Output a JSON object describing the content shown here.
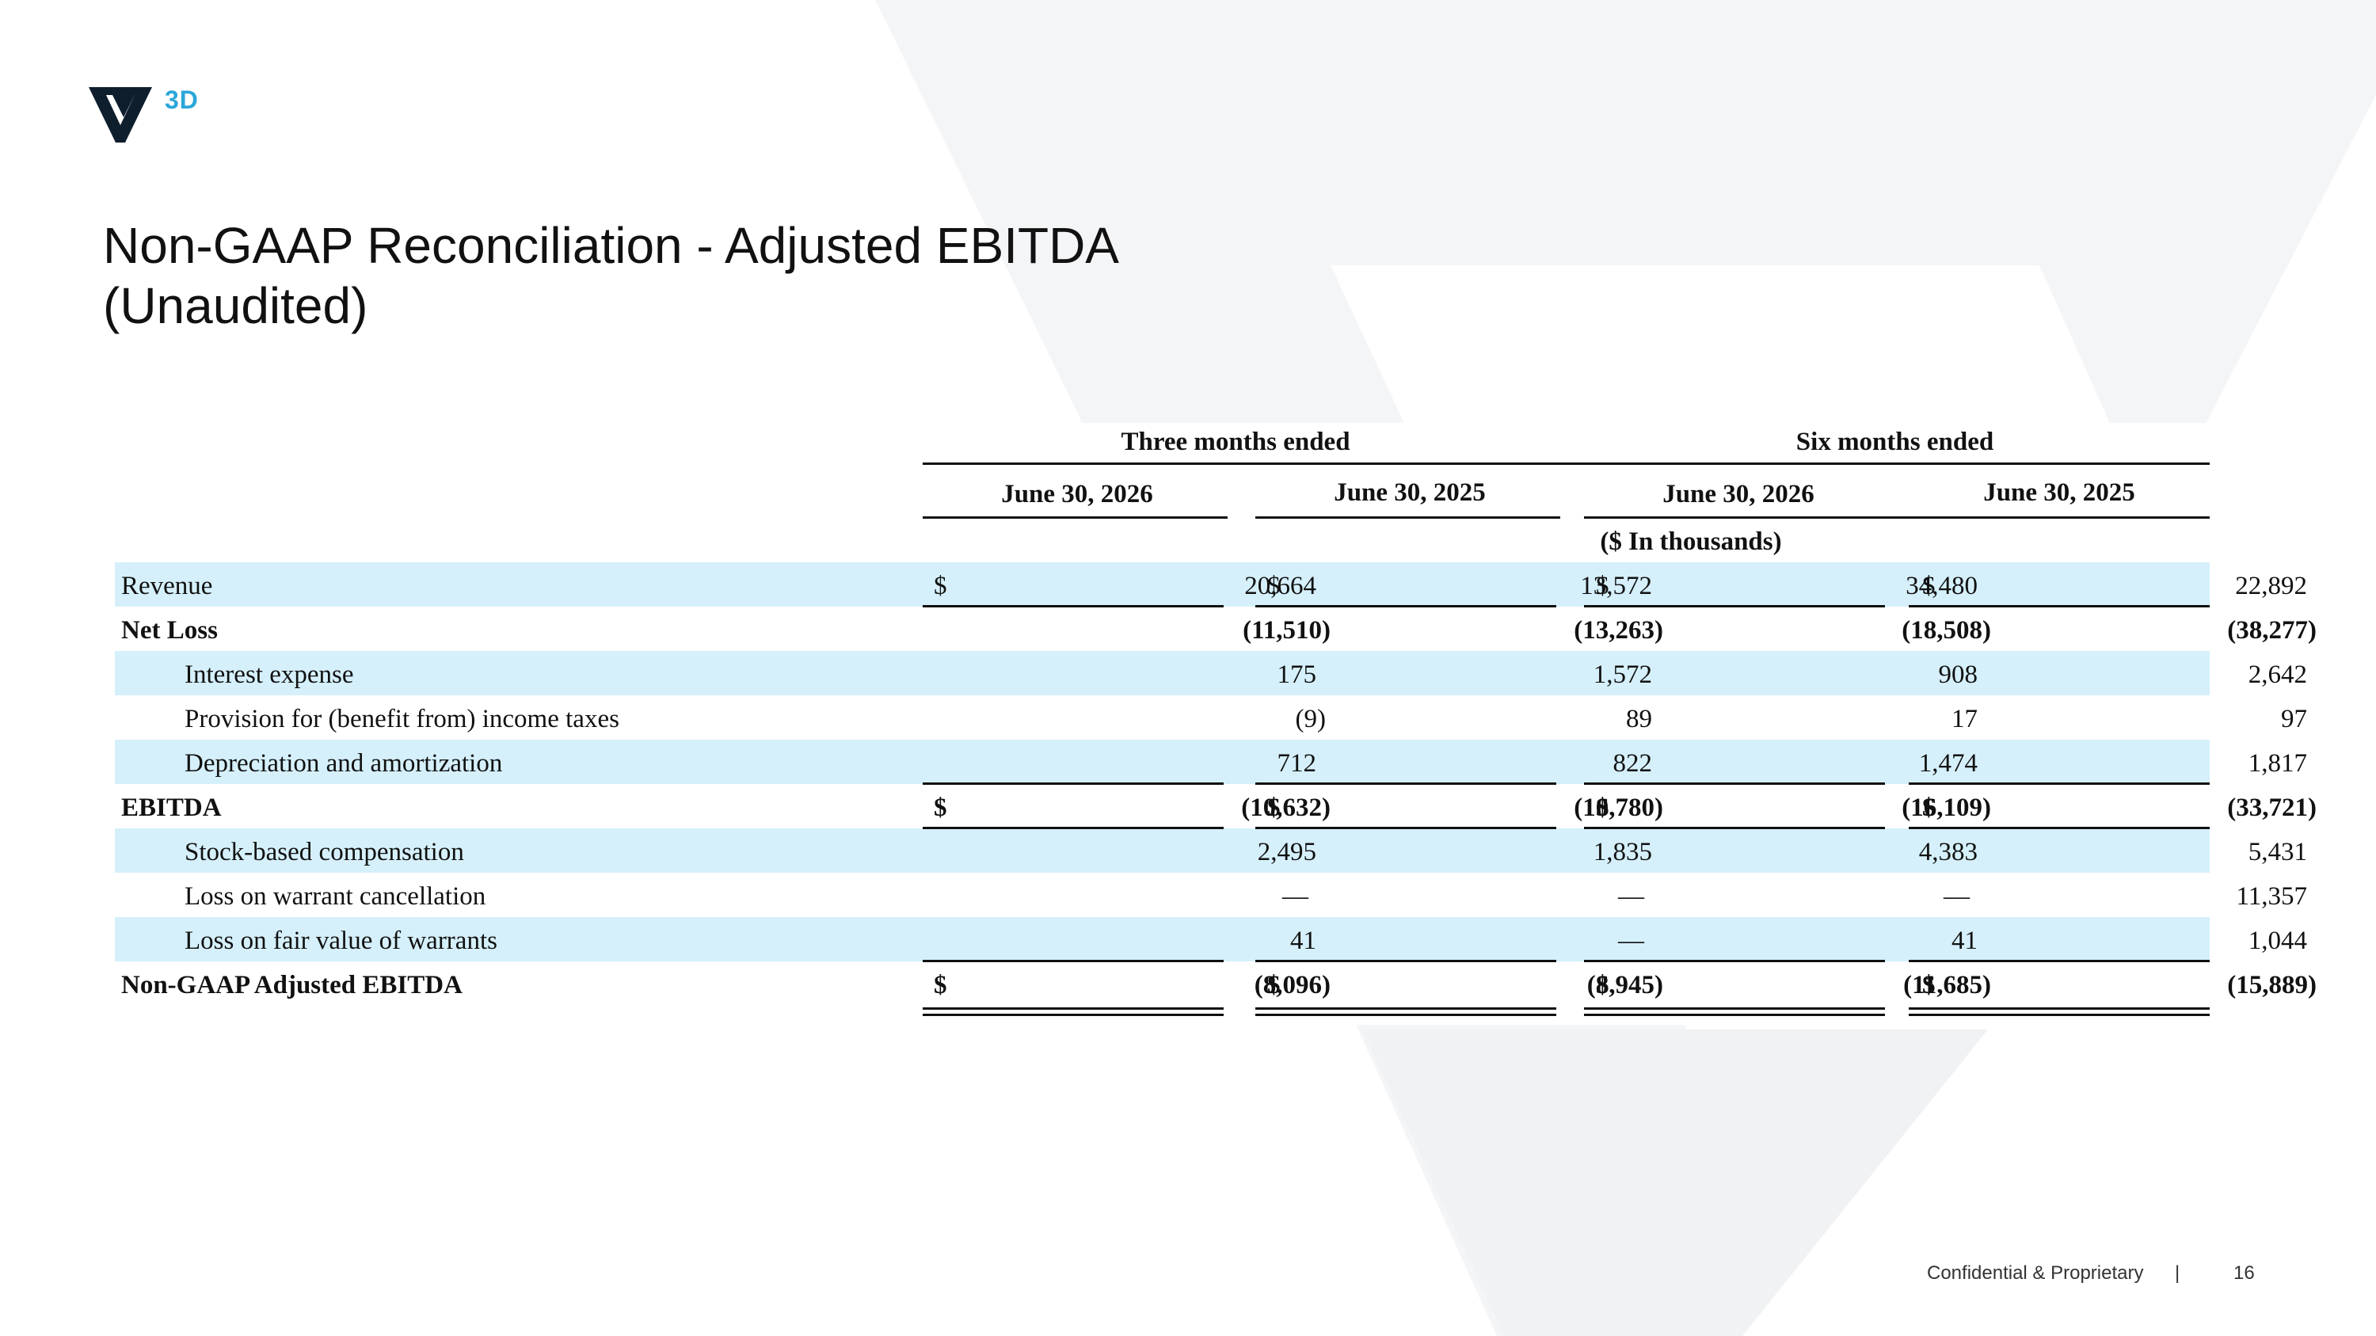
{
  "logo": {
    "text": "3D"
  },
  "title": {
    "line1": "Non-GAAP Reconciliation - Adjusted EBITDA",
    "line2": "(Unaudited)"
  },
  "table": {
    "group_headers": [
      "Three months ended",
      "Six months ended"
    ],
    "column_headers": [
      "June 30, 2026",
      "June 30, 2025",
      "June 30, 2026",
      "June 30, 2025"
    ],
    "units_note": "($ In thousands)",
    "currency_symbol": "$",
    "rows": [
      {
        "label": "Revenue",
        "values": [
          "20,664",
          "13,572",
          "34,480",
          "22,892"
        ]
      },
      {
        "label": "Net Loss",
        "values": [
          "(11,510)",
          "(13,263)",
          "(18,508)",
          "(38,277)"
        ]
      },
      {
        "label": "Interest expense",
        "values": [
          "175",
          "1,572",
          "908",
          "2,642"
        ]
      },
      {
        "label": "Provision for (benefit from) income taxes",
        "values": [
          "(9)",
          "89",
          "17",
          "97"
        ]
      },
      {
        "label": "Depreciation and amortization",
        "values": [
          "712",
          "822",
          "1,474",
          "1,817"
        ]
      },
      {
        "label": "EBITDA",
        "values": [
          "(10,632)",
          "(10,780)",
          "(16,109)",
          "(33,721)"
        ]
      },
      {
        "label": "Stock-based compensation",
        "values": [
          "2,495",
          "1,835",
          "4,383",
          "5,431"
        ]
      },
      {
        "label": "Loss on warrant cancellation",
        "values": [
          "—",
          "—",
          "—",
          "11,357"
        ]
      },
      {
        "label": "Loss on fair value of warrants",
        "values": [
          "41",
          "—",
          "41",
          "1,044"
        ]
      },
      {
        "label": "Non-GAAP Adjusted EBITDA",
        "values": [
          "(8,096)",
          "(8,945)",
          "(11,685)",
          "(15,889)"
        ]
      }
    ]
  },
  "footer": {
    "confidential": "Confidential & Proprietary",
    "separator": "|",
    "page_number": "16"
  },
  "colors": {
    "accent": "#2aa7d9",
    "row_shade": "#d5f0fb",
    "logo_dark": "#0f1e2d"
  }
}
